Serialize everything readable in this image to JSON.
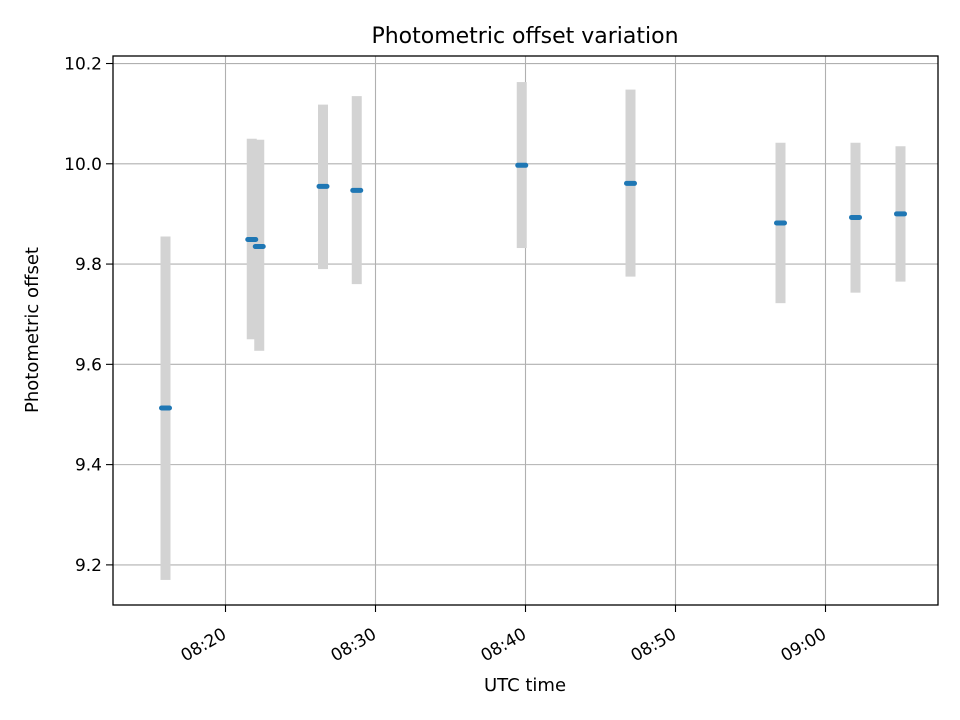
{
  "chart_data": {
    "type": "scatter",
    "title": "Photometric offset variation",
    "xlabel": "UTC time",
    "ylabel": "Photometric offset",
    "x_axis_type": "time",
    "xlim": [
      "08:12:30",
      "09:07:30"
    ],
    "ylim": [
      9.12,
      10.215
    ],
    "x_ticks": [
      "08:20",
      "08:30",
      "08:40",
      "08:50",
      "09:00"
    ],
    "y_ticks": [
      9.2,
      9.4,
      9.6,
      9.8,
      10.0,
      10.2
    ],
    "y_tick_labels": [
      "9.2",
      "9.4",
      "9.6",
      "9.8",
      "10.0",
      "10.2"
    ],
    "grid": true,
    "marker_color": "#1f77b4",
    "errorbar_color": "#d3d3d3",
    "points": [
      {
        "time": "08:16:00",
        "y": 9.513,
        "yerr_low": 9.17,
        "yerr_high": 9.855
      },
      {
        "time": "08:21:45",
        "y": 9.849,
        "yerr_low": 9.65,
        "yerr_high": 10.05
      },
      {
        "time": "08:22:15",
        "y": 9.835,
        "yerr_low": 9.627,
        "yerr_high": 10.048
      },
      {
        "time": "08:26:30",
        "y": 9.955,
        "yerr_low": 9.79,
        "yerr_high": 10.118
      },
      {
        "time": "08:28:45",
        "y": 9.947,
        "yerr_low": 9.76,
        "yerr_high": 10.135
      },
      {
        "time": "08:39:45",
        "y": 9.997,
        "yerr_low": 9.832,
        "yerr_high": 10.163
      },
      {
        "time": "08:47:00",
        "y": 9.961,
        "yerr_low": 9.775,
        "yerr_high": 10.148
      },
      {
        "time": "08:57:00",
        "y": 9.882,
        "yerr_low": 9.722,
        "yerr_high": 10.042
      },
      {
        "time": "09:02:00",
        "y": 9.893,
        "yerr_low": 9.743,
        "yerr_high": 10.042
      },
      {
        "time": "09:05:00",
        "y": 9.9,
        "yerr_low": 9.765,
        "yerr_high": 10.035
      }
    ]
  }
}
